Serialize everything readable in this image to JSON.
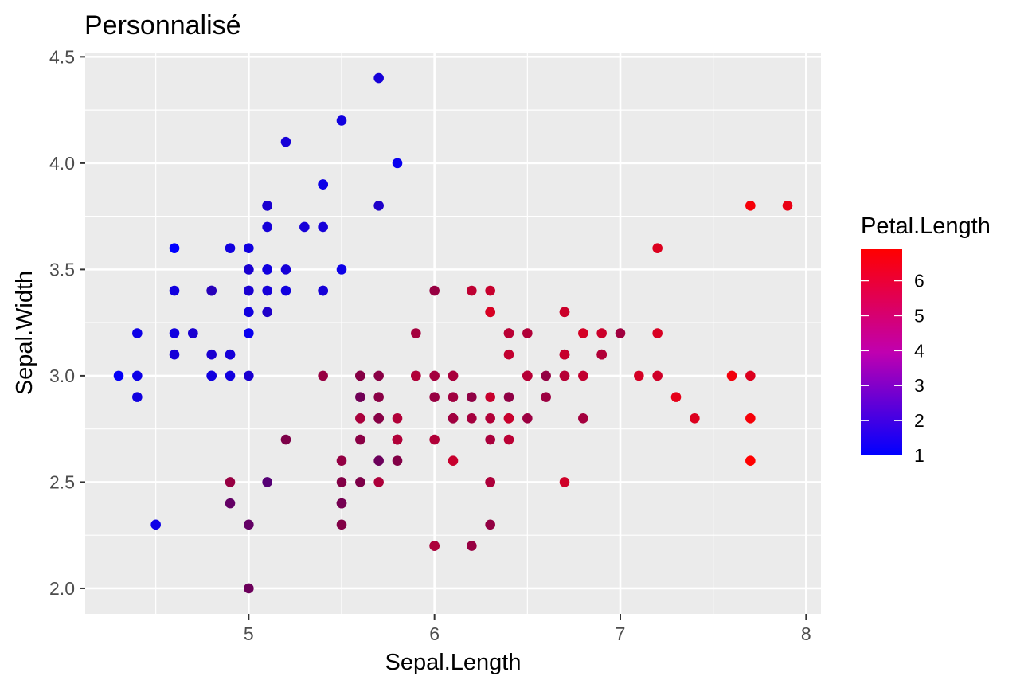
{
  "chart_data": {
    "type": "scatter",
    "title": "Personnalisé",
    "xlabel": "Sepal.Length",
    "ylabel": "Sepal.Width",
    "xlim": [
      4.12,
      8.08
    ],
    "ylim": [
      1.88,
      4.52
    ],
    "x_ticks": [
      5,
      6,
      7,
      8
    ],
    "y_ticks": [
      2.0,
      2.5,
      3.0,
      3.5,
      4.0,
      4.5
    ],
    "x_tick_labels": [
      "5",
      "6",
      "7",
      "8"
    ],
    "y_tick_labels": [
      "2.0",
      "2.5",
      "3.0",
      "3.5",
      "4.0",
      "4.5"
    ],
    "background_color": "#ebebeb",
    "grid": true,
    "color_variable": "Petal.Length",
    "color_low": "#0000ff",
    "color_high": "#ff0000",
    "color_range": [
      1.0,
      6.9
    ],
    "legend": {
      "title": "Petal.Length",
      "position": "right",
      "breaks": [
        1,
        2,
        3,
        4,
        5,
        6
      ],
      "labels": [
        "1",
        "2",
        "3",
        "4",
        "5",
        "6"
      ]
    },
    "points": [
      {
        "x": 5.1,
        "y": 3.5,
        "c": 1.4
      },
      {
        "x": 4.9,
        "y": 3.0,
        "c": 1.4
      },
      {
        "x": 4.7,
        "y": 3.2,
        "c": 1.3
      },
      {
        "x": 4.6,
        "y": 3.1,
        "c": 1.5
      },
      {
        "x": 5.0,
        "y": 3.6,
        "c": 1.4
      },
      {
        "x": 5.4,
        "y": 3.9,
        "c": 1.7
      },
      {
        "x": 4.6,
        "y": 3.4,
        "c": 1.4
      },
      {
        "x": 5.0,
        "y": 3.4,
        "c": 1.5
      },
      {
        "x": 4.4,
        "y": 2.9,
        "c": 1.4
      },
      {
        "x": 4.9,
        "y": 3.1,
        "c": 1.5
      },
      {
        "x": 5.4,
        "y": 3.7,
        "c": 1.5
      },
      {
        "x": 4.8,
        "y": 3.4,
        "c": 1.6
      },
      {
        "x": 4.8,
        "y": 3.0,
        "c": 1.4
      },
      {
        "x": 4.3,
        "y": 3.0,
        "c": 1.1
      },
      {
        "x": 5.8,
        "y": 4.0,
        "c": 1.2
      },
      {
        "x": 5.7,
        "y": 4.4,
        "c": 1.5
      },
      {
        "x": 5.4,
        "y": 3.9,
        "c": 1.3
      },
      {
        "x": 5.1,
        "y": 3.5,
        "c": 1.4
      },
      {
        "x": 5.7,
        "y": 3.8,
        "c": 1.7
      },
      {
        "x": 5.1,
        "y": 3.8,
        "c": 1.5
      },
      {
        "x": 5.4,
        "y": 3.4,
        "c": 1.7
      },
      {
        "x": 5.1,
        "y": 3.7,
        "c": 1.5
      },
      {
        "x": 4.6,
        "y": 3.6,
        "c": 1.0
      },
      {
        "x": 5.1,
        "y": 3.3,
        "c": 1.7
      },
      {
        "x": 4.8,
        "y": 3.4,
        "c": 1.9
      },
      {
        "x": 5.0,
        "y": 3.0,
        "c": 1.6
      },
      {
        "x": 5.0,
        "y": 3.4,
        "c": 1.6
      },
      {
        "x": 5.2,
        "y": 3.5,
        "c": 1.5
      },
      {
        "x": 5.2,
        "y": 3.4,
        "c": 1.4
      },
      {
        "x": 4.7,
        "y": 3.2,
        "c": 1.6
      },
      {
        "x": 4.8,
        "y": 3.1,
        "c": 1.6
      },
      {
        "x": 5.4,
        "y": 3.4,
        "c": 1.5
      },
      {
        "x": 5.2,
        "y": 4.1,
        "c": 1.5
      },
      {
        "x": 5.5,
        "y": 4.2,
        "c": 1.4
      },
      {
        "x": 4.9,
        "y": 3.1,
        "c": 1.5
      },
      {
        "x": 5.0,
        "y": 3.2,
        "c": 1.2
      },
      {
        "x": 5.5,
        "y": 3.5,
        "c": 1.3
      },
      {
        "x": 4.9,
        "y": 3.6,
        "c": 1.4
      },
      {
        "x": 4.4,
        "y": 3.0,
        "c": 1.3
      },
      {
        "x": 5.1,
        "y": 3.4,
        "c": 1.5
      },
      {
        "x": 5.0,
        "y": 3.5,
        "c": 1.3
      },
      {
        "x": 4.5,
        "y": 2.3,
        "c": 1.3
      },
      {
        "x": 4.4,
        "y": 3.2,
        "c": 1.3
      },
      {
        "x": 5.0,
        "y": 3.5,
        "c": 1.6
      },
      {
        "x": 5.1,
        "y": 3.8,
        "c": 1.9
      },
      {
        "x": 4.8,
        "y": 3.0,
        "c": 1.4
      },
      {
        "x": 5.1,
        "y": 3.8,
        "c": 1.6
      },
      {
        "x": 4.6,
        "y": 3.2,
        "c": 1.4
      },
      {
        "x": 5.3,
        "y": 3.7,
        "c": 1.5
      },
      {
        "x": 5.0,
        "y": 3.3,
        "c": 1.4
      },
      {
        "x": 7.0,
        "y": 3.2,
        "c": 4.7
      },
      {
        "x": 6.4,
        "y": 3.2,
        "c": 4.5
      },
      {
        "x": 6.9,
        "y": 3.1,
        "c": 4.9
      },
      {
        "x": 5.5,
        "y": 2.3,
        "c": 4.0
      },
      {
        "x": 6.5,
        "y": 2.8,
        "c": 4.6
      },
      {
        "x": 5.7,
        "y": 2.8,
        "c": 4.5
      },
      {
        "x": 6.3,
        "y": 3.3,
        "c": 4.7
      },
      {
        "x": 4.9,
        "y": 2.4,
        "c": 3.3
      },
      {
        "x": 6.6,
        "y": 2.9,
        "c": 4.6
      },
      {
        "x": 5.2,
        "y": 2.7,
        "c": 3.9
      },
      {
        "x": 5.0,
        "y": 2.0,
        "c": 3.5
      },
      {
        "x": 5.9,
        "y": 3.0,
        "c": 4.2
      },
      {
        "x": 6.0,
        "y": 2.2,
        "c": 4.0
      },
      {
        "x": 6.1,
        "y": 2.9,
        "c": 4.7
      },
      {
        "x": 5.6,
        "y": 2.9,
        "c": 3.6
      },
      {
        "x": 6.7,
        "y": 3.1,
        "c": 4.4
      },
      {
        "x": 5.6,
        "y": 3.0,
        "c": 4.5
      },
      {
        "x": 5.8,
        "y": 2.7,
        "c": 4.1
      },
      {
        "x": 6.2,
        "y": 2.2,
        "c": 4.5
      },
      {
        "x": 5.6,
        "y": 2.5,
        "c": 3.9
      },
      {
        "x": 5.9,
        "y": 3.2,
        "c": 4.8
      },
      {
        "x": 6.1,
        "y": 2.8,
        "c": 4.0
      },
      {
        "x": 6.3,
        "y": 2.5,
        "c": 4.9
      },
      {
        "x": 6.1,
        "y": 2.8,
        "c": 4.7
      },
      {
        "x": 6.4,
        "y": 2.9,
        "c": 4.3
      },
      {
        "x": 6.6,
        "y": 3.0,
        "c": 4.4
      },
      {
        "x": 6.8,
        "y": 2.8,
        "c": 4.8
      },
      {
        "x": 6.7,
        "y": 3.0,
        "c": 5.0
      },
      {
        "x": 6.0,
        "y": 2.9,
        "c": 4.5
      },
      {
        "x": 5.7,
        "y": 2.6,
        "c": 3.5
      },
      {
        "x": 5.5,
        "y": 2.4,
        "c": 3.8
      },
      {
        "x": 5.5,
        "y": 2.4,
        "c": 3.7
      },
      {
        "x": 5.8,
        "y": 2.7,
        "c": 3.9
      },
      {
        "x": 6.0,
        "y": 2.7,
        "c": 5.1
      },
      {
        "x": 5.4,
        "y": 3.0,
        "c": 4.5
      },
      {
        "x": 6.0,
        "y": 3.4,
        "c": 4.5
      },
      {
        "x": 6.7,
        "y": 3.1,
        "c": 4.7
      },
      {
        "x": 6.3,
        "y": 2.3,
        "c": 4.4
      },
      {
        "x": 5.6,
        "y": 3.0,
        "c": 4.1
      },
      {
        "x": 5.5,
        "y": 2.5,
        "c": 4.0
      },
      {
        "x": 5.5,
        "y": 2.6,
        "c": 4.4
      },
      {
        "x": 6.1,
        "y": 3.0,
        "c": 4.6
      },
      {
        "x": 5.8,
        "y": 2.6,
        "c": 4.0
      },
      {
        "x": 5.0,
        "y": 2.3,
        "c": 3.3
      },
      {
        "x": 5.6,
        "y": 2.7,
        "c": 4.2
      },
      {
        "x": 5.7,
        "y": 3.0,
        "c": 4.2
      },
      {
        "x": 5.7,
        "y": 2.9,
        "c": 4.2
      },
      {
        "x": 6.2,
        "y": 2.9,
        "c": 4.3
      },
      {
        "x": 5.1,
        "y": 2.5,
        "c": 3.0
      },
      {
        "x": 5.7,
        "y": 2.8,
        "c": 4.1
      },
      {
        "x": 6.3,
        "y": 3.3,
        "c": 6.0
      },
      {
        "x": 5.8,
        "y": 2.7,
        "c": 5.1
      },
      {
        "x": 7.1,
        "y": 3.0,
        "c": 5.9
      },
      {
        "x": 6.3,
        "y": 2.9,
        "c": 5.6
      },
      {
        "x": 6.5,
        "y": 3.0,
        "c": 5.8
      },
      {
        "x": 7.6,
        "y": 3.0,
        "c": 6.6
      },
      {
        "x": 4.9,
        "y": 2.5,
        "c": 4.5
      },
      {
        "x": 7.3,
        "y": 2.9,
        "c": 6.3
      },
      {
        "x": 6.7,
        "y": 2.5,
        "c": 5.8
      },
      {
        "x": 7.2,
        "y": 3.6,
        "c": 6.1
      },
      {
        "x": 6.5,
        "y": 3.2,
        "c": 5.1
      },
      {
        "x": 6.4,
        "y": 2.7,
        "c": 5.3
      },
      {
        "x": 6.8,
        "y": 3.0,
        "c": 5.5
      },
      {
        "x": 5.7,
        "y": 2.5,
        "c": 5.0
      },
      {
        "x": 5.8,
        "y": 2.8,
        "c": 5.1
      },
      {
        "x": 6.4,
        "y": 3.2,
        "c": 5.3
      },
      {
        "x": 6.5,
        "y": 3.0,
        "c": 5.5
      },
      {
        "x": 7.7,
        "y": 3.8,
        "c": 6.7
      },
      {
        "x": 7.7,
        "y": 2.6,
        "c": 6.9
      },
      {
        "x": 6.0,
        "y": 2.2,
        "c": 5.0
      },
      {
        "x": 6.9,
        "y": 3.2,
        "c": 5.7
      },
      {
        "x": 5.6,
        "y": 2.8,
        "c": 4.9
      },
      {
        "x": 7.7,
        "y": 2.8,
        "c": 6.7
      },
      {
        "x": 6.3,
        "y": 2.7,
        "c": 4.9
      },
      {
        "x": 6.7,
        "y": 3.3,
        "c": 5.7
      },
      {
        "x": 7.2,
        "y": 3.2,
        "c": 6.0
      },
      {
        "x": 6.2,
        "y": 2.8,
        "c": 4.8
      },
      {
        "x": 6.1,
        "y": 3.0,
        "c": 4.9
      },
      {
        "x": 6.4,
        "y": 2.8,
        "c": 5.6
      },
      {
        "x": 7.2,
        "y": 3.0,
        "c": 5.8
      },
      {
        "x": 7.4,
        "y": 2.8,
        "c": 6.1
      },
      {
        "x": 7.9,
        "y": 3.8,
        "c": 6.4
      },
      {
        "x": 6.4,
        "y": 2.8,
        "c": 5.6
      },
      {
        "x": 6.3,
        "y": 2.8,
        "c": 5.1
      },
      {
        "x": 6.1,
        "y": 2.6,
        "c": 5.6
      },
      {
        "x": 7.7,
        "y": 3.0,
        "c": 6.1
      },
      {
        "x": 6.3,
        "y": 3.4,
        "c": 5.6
      },
      {
        "x": 6.4,
        "y": 3.1,
        "c": 5.5
      },
      {
        "x": 6.0,
        "y": 3.0,
        "c": 4.8
      },
      {
        "x": 6.9,
        "y": 3.1,
        "c": 5.4
      },
      {
        "x": 6.7,
        "y": 3.1,
        "c": 5.6
      },
      {
        "x": 6.9,
        "y": 3.1,
        "c": 5.1
      },
      {
        "x": 5.8,
        "y": 2.7,
        "c": 5.1
      },
      {
        "x": 6.8,
        "y": 3.2,
        "c": 5.9
      },
      {
        "x": 6.7,
        "y": 3.3,
        "c": 5.7
      },
      {
        "x": 6.7,
        "y": 3.0,
        "c": 5.2
      },
      {
        "x": 6.3,
        "y": 2.5,
        "c": 5.0
      },
      {
        "x": 6.5,
        "y": 3.0,
        "c": 5.2
      },
      {
        "x": 6.2,
        "y": 3.4,
        "c": 5.4
      },
      {
        "x": 5.9,
        "y": 3.0,
        "c": 5.1
      }
    ]
  }
}
